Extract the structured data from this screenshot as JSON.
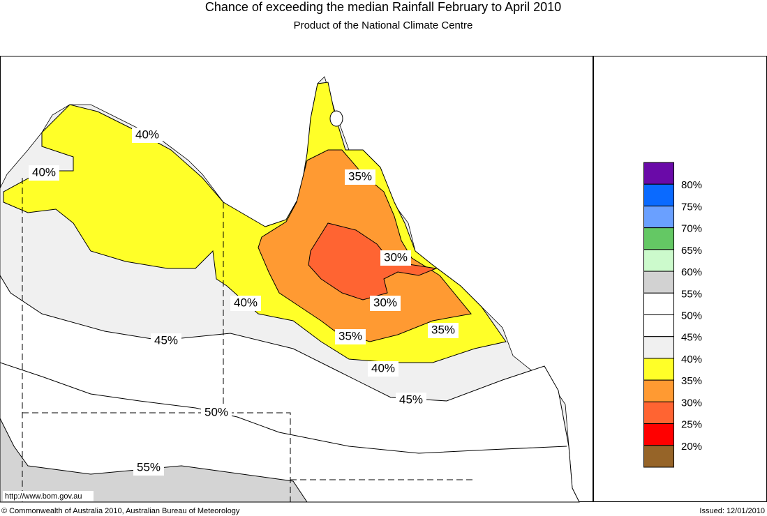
{
  "header": {
    "title": "Chance of exceeding the median Rainfall February to April 2010",
    "subtitle": "Product of the National Climate Centre"
  },
  "map": {
    "contour_labels": [
      "40%",
      "40%",
      "35%",
      "30%",
      "30%",
      "40%",
      "35%",
      "35%",
      "45%",
      "40%",
      "45%",
      "50%",
      "55%"
    ],
    "url": "http://www.bom.gov.au"
  },
  "legend": {
    "colors": [
      "#6a0aa8",
      "#0a6aff",
      "#6aa0ff",
      "#64c864",
      "#ccfacc",
      "#d2d2d2",
      "#ffffff",
      "#ffffff",
      "#f0f0f0",
      "#ffff28",
      "#ff9a32",
      "#ff6432",
      "#ff0000",
      "#966428"
    ],
    "labels": [
      "80%",
      "75%",
      "70%",
      "65%",
      "60%",
      "55%",
      "50%",
      "45%",
      "40%",
      "35%",
      "30%",
      "25%",
      "20%"
    ]
  },
  "footer": {
    "copyright": "© Commonwealth of Australia 2010, Australian Bureau of Meteorology",
    "issued": "Issued: 12/01/2010"
  }
}
